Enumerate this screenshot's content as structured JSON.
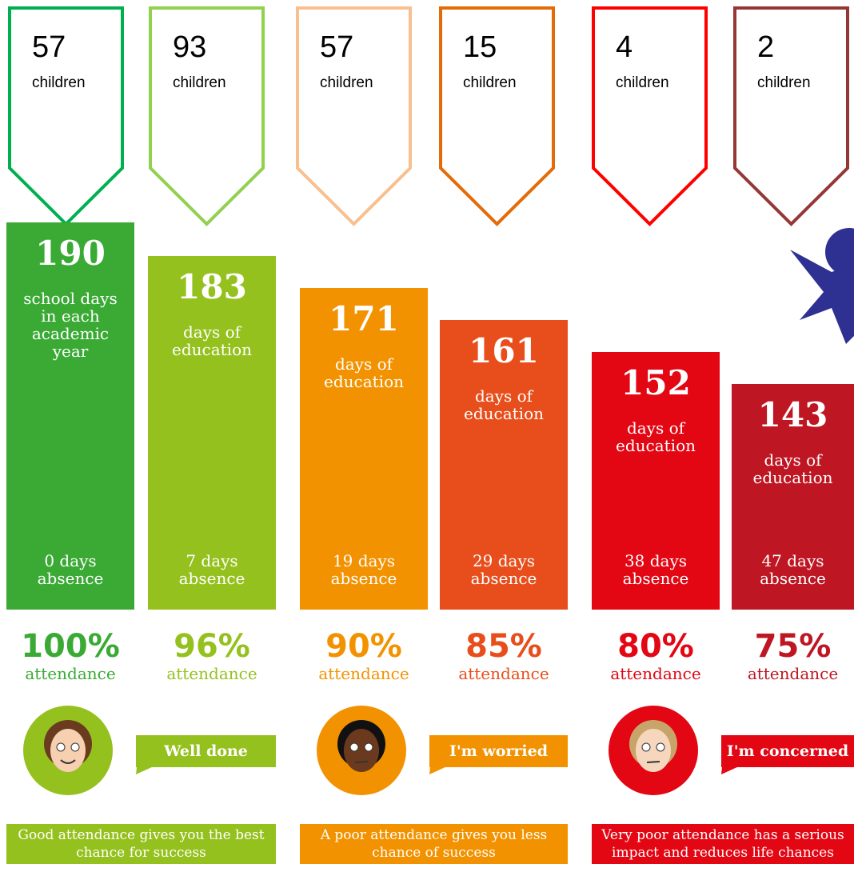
{
  "columns": [
    {
      "children": "57",
      "children_label": "children",
      "days": "190",
      "days_label": "school days in each academic year",
      "absence": "0 days absence",
      "attendance_percent": "100%",
      "attendance_label": "attendance"
    },
    {
      "children": "93",
      "children_label": "children",
      "days": "183",
      "days_label": "days of education",
      "absence": "7 days absence",
      "attendance_percent": "96%",
      "attendance_label": "attendance"
    },
    {
      "children": "57",
      "children_label": "children",
      "days": "171",
      "days_label": "days of education",
      "absence": "19 days absence",
      "attendance_percent": "90%",
      "attendance_label": "attendance"
    },
    {
      "children": "15",
      "children_label": "children",
      "days": "161",
      "days_label": "days of education",
      "absence": "29 days absence",
      "attendance_percent": "85%",
      "attendance_label": "attendance"
    },
    {
      "children": "4",
      "children_label": "children",
      "days": "152",
      "days_label": "days of education",
      "absence": "38 days absence",
      "attendance_percent": "80%",
      "attendance_label": "attendance"
    },
    {
      "children": "2",
      "children_label": "children",
      "days": "143",
      "days_label": "days of education",
      "absence": "47 days absence",
      "attendance_percent": "75%",
      "attendance_label": "attendance"
    }
  ],
  "groups": [
    {
      "speech": "Well done",
      "message": "Good attendance gives you the best chance for success"
    },
    {
      "speech": "I'm worried",
      "message": "A poor attendance gives you less chance of success"
    },
    {
      "speech": "I'm concerned",
      "message": "Very poor attendance has a serious impact and reduces life chances"
    }
  ]
}
